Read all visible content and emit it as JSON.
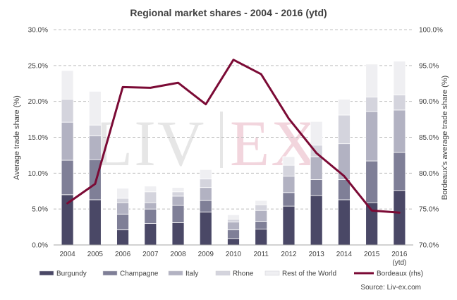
{
  "chart_data": {
    "type": "bar",
    "title": "Regional market shares - 2004 - 2016 (ytd)",
    "ylabel": "Average trade share (%)",
    "y2label": "Bordeaux's average trade share (%)",
    "categories": [
      "2004",
      "2005",
      "2006",
      "2007",
      "2008",
      "2009",
      "2010",
      "2011",
      "2012",
      "2013",
      "2014",
      "2015",
      "2016"
    ],
    "category_sublabels": [
      "",
      "",
      "",
      "",
      "",
      "",
      "",
      "",
      "",
      "",
      "",
      "",
      "(ytd)"
    ],
    "ylim": [
      0,
      30
    ],
    "y_ticks": [
      "0.0%",
      "5.0%",
      "10.0%",
      "15.0%",
      "20.0%",
      "25.0%",
      "30.0%"
    ],
    "y2lim": [
      70,
      100
    ],
    "y2_ticks": [
      "70.0%",
      "75.0%",
      "80.0%",
      "85.0%",
      "90.0%",
      "95.0%",
      "100.0%"
    ],
    "grid": true,
    "legend_position": "bottom",
    "stacked": true,
    "series": [
      {
        "name": "Burgundy",
        "type": "bar",
        "color": "#4a4866",
        "values": [
          7.0,
          6.3,
          2.1,
          3.0,
          3.1,
          4.6,
          0.9,
          2.2,
          5.4,
          6.9,
          6.3,
          5.9,
          7.6
        ]
      },
      {
        "name": "Champagne",
        "type": "bar",
        "color": "#7f7f97",
        "values": [
          4.8,
          5.6,
          2.2,
          2.0,
          2.4,
          1.6,
          1.2,
          1.1,
          1.9,
          2.2,
          2.8,
          5.8,
          5.3
        ]
      },
      {
        "name": "Italy",
        "type": "bar",
        "color": "#b2b2c2",
        "values": [
          5.3,
          3.3,
          1.6,
          0.9,
          1.3,
          1.8,
          1.1,
          1.5,
          2.3,
          3.2,
          5.0,
          6.9,
          5.9
        ]
      },
      {
        "name": "Rhone",
        "type": "bar",
        "color": "#d4d4dd",
        "values": [
          3.2,
          1.5,
          0.6,
          1.5,
          0.6,
          1.2,
          0.4,
          0.8,
          1.5,
          1.6,
          4.0,
          2.0,
          2.1
        ]
      },
      {
        "name": "Rest of the World",
        "type": "bar",
        "color": "#efeff2",
        "values": [
          4.0,
          4.7,
          1.4,
          0.8,
          0.6,
          1.3,
          0.6,
          0.6,
          1.2,
          3.3,
          2.2,
          4.6,
          4.7
        ]
      },
      {
        "name": "Bordeaux (rhs)",
        "type": "line",
        "axis": "right",
        "color": "#7b0a35",
        "values": [
          75.8,
          78.5,
          92.0,
          91.9,
          92.6,
          89.6,
          95.8,
          93.8,
          87.6,
          82.8,
          79.6,
          74.8,
          74.5
        ]
      }
    ],
    "source": "Source: Liv-ex.com",
    "watermark": "LIV|EX"
  },
  "colors": {
    "grid": "#bfbfbf",
    "text": "#404040",
    "watermark_grey": "#e6e6e6",
    "watermark_pink": "#f2d5dd"
  }
}
